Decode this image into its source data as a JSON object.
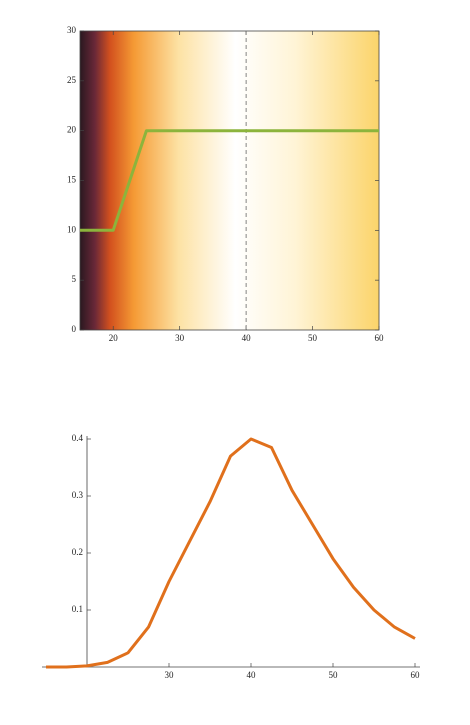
{
  "chart_data": [
    {
      "type": "density_line",
      "x": [
        15,
        20,
        25,
        60
      ],
      "series": [
        {
          "color": "#8cb43c",
          "values": [
            10,
            10,
            20,
            20
          ]
        }
      ],
      "vline": 40,
      "xlim": [
        15,
        60
      ],
      "ylim": [
        0,
        30
      ],
      "xticks": [
        20,
        30,
        40,
        50,
        60
      ],
      "yticks": [
        0,
        5,
        10,
        15,
        20,
        25,
        30
      ]
    },
    {
      "type": "line",
      "x": [
        15,
        17.5,
        20,
        22.5,
        25,
        27.5,
        30,
        32.5,
        35,
        37.5,
        40,
        42.5,
        45,
        47.5,
        50,
        52.5,
        55,
        57.5,
        60
      ],
      "series": [
        {
          "color": "#e0701c",
          "values": [
            0,
            0,
            0.002,
            0.008,
            0.025,
            0.07,
            0.15,
            0.22,
            0.29,
            0.37,
            0.4,
            0.385,
            0.31,
            0.25,
            0.19,
            0.14,
            0.1,
            0.07,
            0.05
          ]
        }
      ],
      "xlim": [
        15,
        60
      ],
      "ylim": [
        0,
        0.4
      ],
      "xticks": [
        30,
        40,
        50,
        60
      ],
      "yticks": [
        0.1,
        0.2,
        0.3,
        0.4
      ],
      "axis_origin": [
        20,
        0
      ]
    }
  ]
}
